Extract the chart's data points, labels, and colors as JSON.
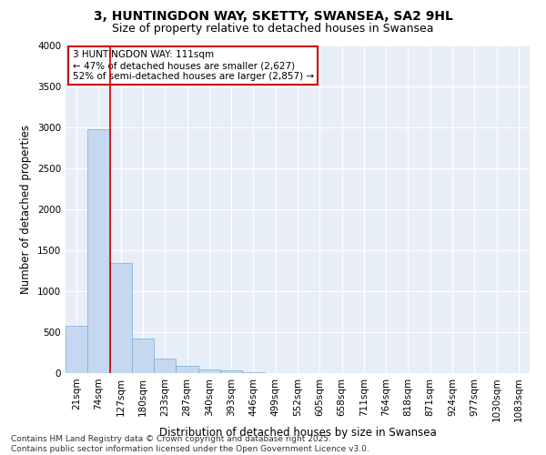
{
  "title_line1": "3, HUNTINGDON WAY, SKETTY, SWANSEA, SA2 9HL",
  "title_line2": "Size of property relative to detached houses in Swansea",
  "xlabel": "Distribution of detached houses by size in Swansea",
  "ylabel": "Number of detached properties",
  "bar_color": "#c5d8f0",
  "bar_edge_color": "#7aadd4",
  "bg_color": "#e8eef8",
  "grid_color": "#ffffff",
  "categories": [
    "21sqm",
    "74sqm",
    "127sqm",
    "180sqm",
    "233sqm",
    "287sqm",
    "340sqm",
    "393sqm",
    "446sqm",
    "499sqm",
    "552sqm",
    "605sqm",
    "658sqm",
    "711sqm",
    "764sqm",
    "818sqm",
    "871sqm",
    "924sqm",
    "977sqm",
    "1030sqm",
    "1083sqm"
  ],
  "values": [
    580,
    2980,
    1340,
    420,
    175,
    90,
    50,
    35,
    10,
    0,
    0,
    0,
    0,
    0,
    0,
    0,
    0,
    0,
    0,
    0,
    0
  ],
  "ylim": [
    0,
    4000
  ],
  "yticks": [
    0,
    500,
    1000,
    1500,
    2000,
    2500,
    3000,
    3500,
    4000
  ],
  "vline_color": "#cc0000",
  "annotation_line1": "3 HUNTINGDON WAY: 111sqm",
  "annotation_line2": "← 47% of detached houses are smaller (2,627)",
  "annotation_line3": "52% of semi-detached houses are larger (2,857) →",
  "annotation_box_edge": "#cc0000",
  "footer_line1": "Contains HM Land Registry data © Crown copyright and database right 2025.",
  "footer_line2": "Contains public sector information licensed under the Open Government Licence v3.0.",
  "title_fontsize": 10,
  "subtitle_fontsize": 9,
  "axis_label_fontsize": 8.5,
  "tick_fontsize": 7.5,
  "annotation_fontsize": 7.5,
  "footer_fontsize": 6.5
}
